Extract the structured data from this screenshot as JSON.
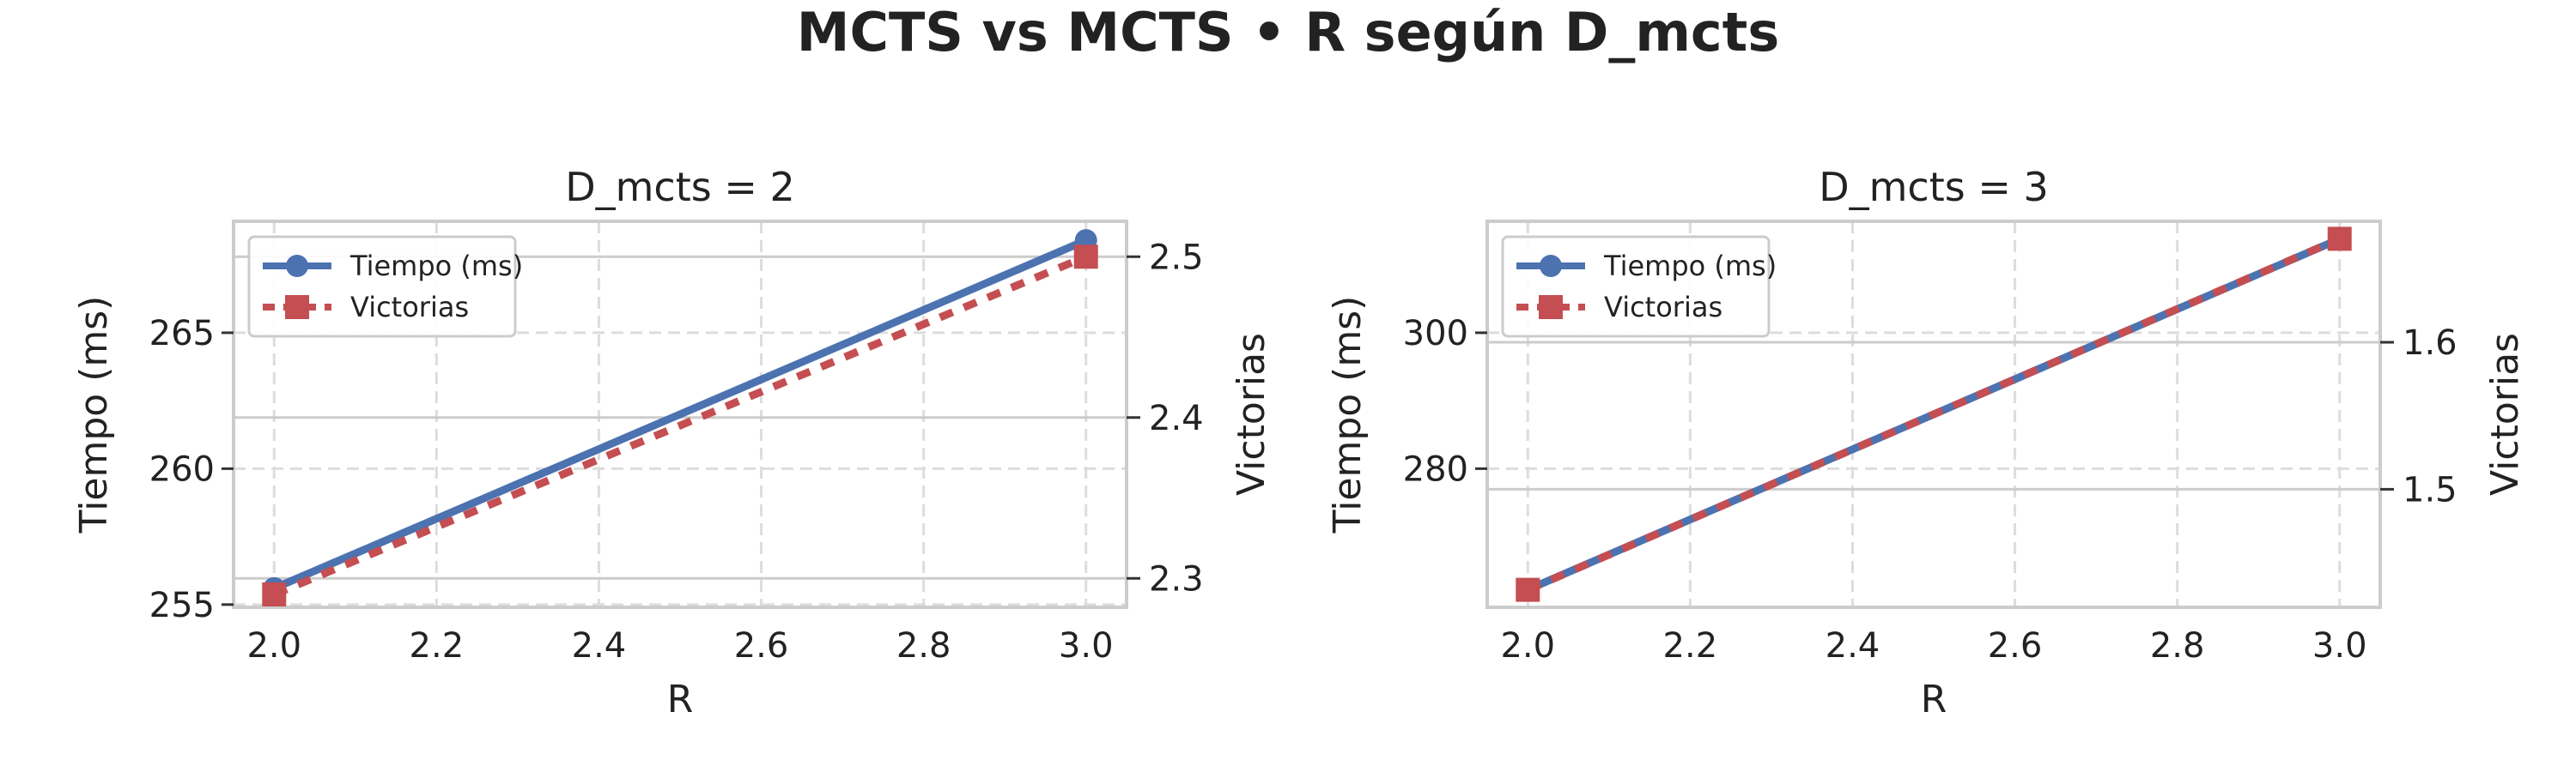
{
  "figure": {
    "title": "MCTS vs MCTS • R según D_mcts"
  },
  "colors": {
    "tiempo": "#4c72b0",
    "victorias": "#c44e52",
    "frame": "#cccccc",
    "grid": "#dddddd",
    "background": "#ffffff"
  },
  "chart_data": [
    {
      "type": "line",
      "title": "D_mcts = 2",
      "xlabel": "R",
      "ylabel": "Tiempo (ms)",
      "y2label": "Victorias",
      "x": [
        2.0,
        3.0
      ],
      "xlim": [
        1.95,
        3.05
      ],
      "xticks": [
        "2.0",
        "2.2",
        "2.4",
        "2.6",
        "2.8",
        "3.0"
      ],
      "ylim": [
        254.9,
        269.1
      ],
      "yticks": [
        "255",
        "260",
        "265"
      ],
      "y2lim": [
        2.282,
        2.522
      ],
      "y2ticks": [
        "2.3",
        "2.4",
        "2.5"
      ],
      "grid": true,
      "legend_position": "upper-left",
      "series": [
        {
          "name": "Tiempo (ms)",
          "axis": "left",
          "marker": "circle",
          "linestyle": "solid",
          "values": [
            255.6,
            268.4
          ]
        },
        {
          "name": "Victorias",
          "axis": "right",
          "marker": "square",
          "linestyle": "dashed",
          "values": [
            2.29,
            2.5
          ]
        }
      ]
    },
    {
      "type": "line",
      "title": "D_mcts = 3",
      "xlabel": "R",
      "ylabel": "Tiempo (ms)",
      "y2label": "Victorias",
      "x": [
        2.0,
        3.0
      ],
      "xlim": [
        1.95,
        3.05
      ],
      "xticks": [
        "2.0",
        "2.2",
        "2.4",
        "2.6",
        "2.8",
        "3.0"
      ],
      "ylim": [
        259.6,
        316.4
      ],
      "yticks": [
        "280",
        "300"
      ],
      "y2lim": [
        1.4197,
        1.6823
      ],
      "y2ticks": [
        "1.5",
        "1.6"
      ],
      "grid": true,
      "legend_position": "upper-left",
      "series": [
        {
          "name": "Tiempo (ms)",
          "axis": "left",
          "marker": "circle",
          "linestyle": "solid",
          "values": [
            262.2,
            313.8
          ]
        },
        {
          "name": "Victorias",
          "axis": "right",
          "marker": "square",
          "linestyle": "dashed",
          "values": [
            1.4316,
            1.6704
          ]
        }
      ]
    }
  ]
}
